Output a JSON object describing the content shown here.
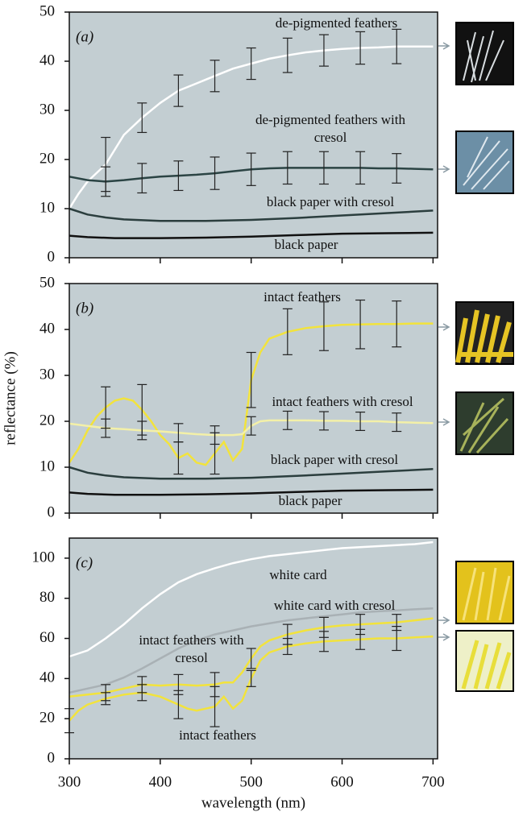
{
  "chart_data": [
    {
      "type": "line",
      "title": "(a)",
      "xlim": [
        300,
        705
      ],
      "ylim": [
        0,
        50
      ],
      "yticks": [
        0,
        10,
        20,
        30,
        40,
        50
      ],
      "xticks": [
        300,
        400,
        500,
        600,
        700
      ],
      "series": [
        {
          "name": "de-pigmented feathers",
          "color": "#ffffff",
          "x": [
            300,
            310,
            320,
            340,
            360,
            380,
            400,
            420,
            440,
            460,
            480,
            500,
            520,
            540,
            560,
            580,
            600,
            620,
            640,
            660,
            680,
            700
          ],
          "values": [
            10,
            13,
            15.5,
            19,
            25,
            28.5,
            31.5,
            34,
            35.5,
            37,
            38.5,
            39.5,
            40.5,
            41.2,
            41.8,
            42.2,
            42.5,
            42.7,
            42.8,
            43,
            43,
            43
          ],
          "errors": [
            null,
            null,
            null,
            5.5,
            null,
            3,
            null,
            3.2,
            null,
            3.2,
            null,
            3.2,
            null,
            3.5,
            null,
            3.2,
            null,
            3.3,
            null,
            3.5,
            null,
            null
          ]
        },
        {
          "name": "de-pigmented feathers with cresol",
          "color": "#2b4444",
          "x": [
            300,
            320,
            340,
            360,
            380,
            400,
            420,
            440,
            460,
            480,
            500,
            520,
            540,
            560,
            580,
            600,
            620,
            640,
            660,
            680,
            700
          ],
          "values": [
            16.5,
            15.8,
            15.5,
            15.8,
            16.2,
            16.5,
            16.7,
            16.9,
            17.2,
            17.6,
            18,
            18.2,
            18.3,
            18.3,
            18.3,
            18.3,
            18.3,
            18.2,
            18.2,
            18.1,
            18
          ],
          "errors": [
            null,
            null,
            3,
            null,
            3,
            null,
            3,
            null,
            3.3,
            null,
            3.3,
            null,
            3.3,
            null,
            3.3,
            null,
            3.3,
            null,
            3,
            null,
            null
          ]
        },
        {
          "name": "black paper with cresol",
          "color": "#2b3e3e",
          "x": [
            300,
            320,
            340,
            360,
            400,
            450,
            500,
            550,
            600,
            650,
            700
          ],
          "values": [
            10,
            8.8,
            8.2,
            7.8,
            7.5,
            7.5,
            7.7,
            8.1,
            8.6,
            9.1,
            9.6
          ]
        },
        {
          "name": "black paper",
          "color": "#111111",
          "x": [
            300,
            320,
            350,
            400,
            450,
            500,
            550,
            600,
            650,
            700
          ],
          "values": [
            4.5,
            4.2,
            4,
            4,
            4.1,
            4.3,
            4.6,
            4.9,
            5,
            5.1
          ]
        }
      ]
    },
    {
      "type": "line",
      "title": "(b)",
      "ylabel": "reflectance (%)",
      "xlim": [
        300,
        705
      ],
      "ylim": [
        0,
        50
      ],
      "yticks": [
        0,
        10,
        20,
        30,
        40,
        50
      ],
      "xticks": [
        300,
        400,
        500,
        600,
        700
      ],
      "series": [
        {
          "name": "intact feathers",
          "color": "#f2e33c",
          "x": [
            300,
            310,
            320,
            330,
            340,
            350,
            360,
            370,
            380,
            390,
            400,
            410,
            420,
            430,
            440,
            450,
            460,
            470,
            480,
            490,
            500,
            510,
            520,
            540,
            560,
            580,
            600,
            620,
            640,
            660,
            680,
            700
          ],
          "values": [
            11,
            14,
            18,
            21,
            23,
            24.5,
            25,
            24.5,
            22.5,
            20,
            17,
            15,
            12,
            13,
            11,
            10.5,
            13,
            15.5,
            11.5,
            14,
            29,
            35,
            38,
            39.5,
            40.3,
            40.7,
            41,
            41.1,
            41.2,
            41.2,
            41.3,
            41.3
          ],
          "errors": [
            null,
            null,
            null,
            null,
            4.5,
            null,
            null,
            null,
            5.5,
            null,
            null,
            null,
            3.5,
            null,
            null,
            null,
            4.5,
            null,
            null,
            null,
            6,
            null,
            null,
            5,
            null,
            5.3,
            null,
            5.3,
            null,
            5,
            null,
            null
          ]
        },
        {
          "name": "intact feathers with cresol",
          "color": "#f3f0a8",
          "x": [
            300,
            320,
            340,
            360,
            380,
            400,
            420,
            440,
            460,
            480,
            490,
            500,
            510,
            520,
            540,
            560,
            580,
            600,
            620,
            640,
            660,
            680,
            700
          ],
          "values": [
            19.5,
            19,
            18.5,
            18.3,
            18,
            17.8,
            17.5,
            17.2,
            17,
            17,
            17.2,
            19,
            20,
            20.2,
            20.2,
            20.2,
            20.1,
            20.1,
            20,
            20,
            19.8,
            19.7,
            19.6
          ],
          "errors": [
            null,
            null,
            2,
            null,
            2,
            null,
            2,
            null,
            2,
            null,
            null,
            2,
            null,
            null,
            2,
            null,
            2,
            null,
            2,
            null,
            2,
            null,
            null
          ]
        },
        {
          "name": "black paper with cresol",
          "color": "#2b3e3e",
          "x": [
            300,
            320,
            340,
            360,
            400,
            450,
            500,
            550,
            600,
            650,
            700
          ],
          "values": [
            10,
            8.8,
            8.2,
            7.8,
            7.5,
            7.5,
            7.7,
            8.1,
            8.6,
            9.1,
            9.6
          ]
        },
        {
          "name": "black paper",
          "color": "#111111",
          "x": [
            300,
            320,
            350,
            400,
            450,
            500,
            550,
            600,
            650,
            700
          ],
          "values": [
            4.5,
            4.2,
            4,
            4,
            4.1,
            4.3,
            4.6,
            4.9,
            5,
            5.1
          ]
        }
      ]
    },
    {
      "type": "line",
      "title": "(c)",
      "xlabel": "wavelength (nm)",
      "xlim": [
        300,
        705
      ],
      "ylim": [
        0,
        110
      ],
      "yticks": [
        0,
        20,
        40,
        60,
        80,
        100
      ],
      "xticks": [
        300,
        400,
        500,
        600,
        700
      ],
      "series": [
        {
          "name": "white card",
          "color": "#ffffff",
          "x": [
            300,
            320,
            340,
            360,
            380,
            400,
            420,
            440,
            460,
            480,
            500,
            520,
            540,
            560,
            580,
            600,
            620,
            640,
            660,
            680,
            700
          ],
          "values": [
            51,
            54,
            60,
            67,
            75,
            82,
            88,
            92,
            95,
            97.5,
            99.5,
            101,
            102,
            103,
            104,
            105,
            105.5,
            106,
            106.5,
            107,
            108
          ]
        },
        {
          "name": "white card with cresol",
          "color": "#a9b1b5",
          "x": [
            300,
            320,
            340,
            360,
            380,
            400,
            420,
            440,
            460,
            480,
            500,
            520,
            540,
            560,
            580,
            600,
            620,
            640,
            660,
            680,
            700
          ],
          "values": [
            33,
            35,
            37,
            40.5,
            45,
            50,
            55,
            59,
            62,
            64,
            66,
            67.5,
            69,
            70,
            71,
            72,
            73,
            73.5,
            74,
            74.5,
            75
          ]
        },
        {
          "name": "intact feathers with cresol",
          "color": "#f2e33c",
          "x": [
            300,
            320,
            340,
            360,
            380,
            400,
            420,
            440,
            460,
            470,
            480,
            490,
            500,
            510,
            520,
            540,
            560,
            580,
            600,
            620,
            640,
            660,
            680,
            700
          ],
          "values": [
            31,
            32,
            33,
            35,
            37,
            36.5,
            37,
            36.5,
            37,
            38,
            38,
            43,
            50,
            56,
            59,
            62,
            64,
            65.5,
            66.5,
            67,
            67.5,
            68,
            69,
            70
          ],
          "errors": [
            null,
            null,
            4,
            null,
            4,
            null,
            5,
            null,
            6,
            null,
            null,
            null,
            5,
            null,
            null,
            5,
            null,
            5,
            null,
            5,
            null,
            4,
            null,
            null
          ]
        },
        {
          "name": "intact feathers",
          "color": "#f2e33c",
          "x": [
            300,
            310,
            320,
            340,
            360,
            380,
            400,
            420,
            430,
            440,
            450,
            460,
            470,
            480,
            490,
            500,
            510,
            520,
            540,
            560,
            580,
            600,
            620,
            640,
            660,
            680,
            700
          ],
          "values": [
            19,
            24,
            27,
            30,
            32,
            33,
            31,
            27,
            25,
            24,
            25,
            26,
            31,
            25,
            29,
            40,
            49,
            53,
            56,
            57.5,
            58.5,
            59,
            59.5,
            60,
            60,
            60.5,
            61
          ],
          "errors": [
            6,
            null,
            null,
            3,
            null,
            4,
            null,
            7,
            null,
            null,
            null,
            10,
            null,
            null,
            null,
            4,
            null,
            null,
            4,
            null,
            5,
            null,
            5,
            null,
            6,
            null,
            null
          ]
        }
      ]
    }
  ]
}
